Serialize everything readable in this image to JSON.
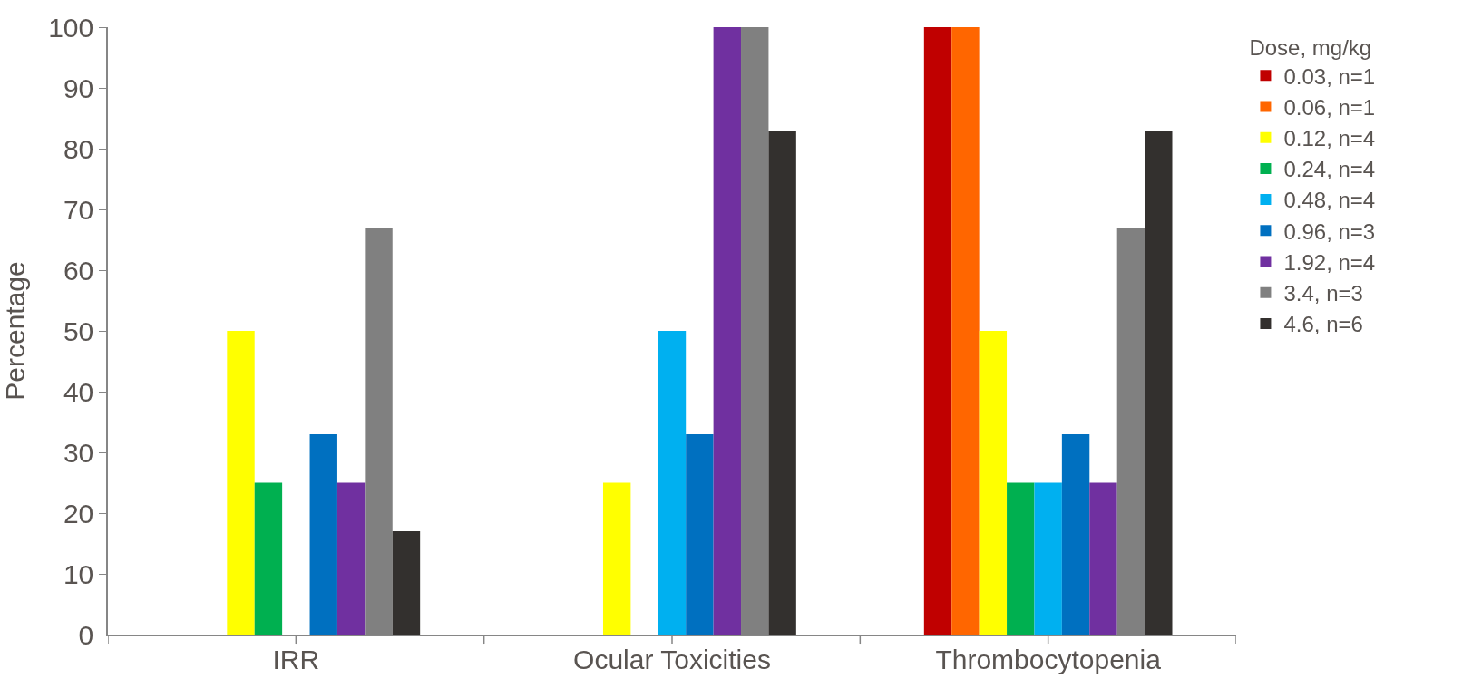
{
  "chart_data": {
    "type": "bar",
    "ylabel": "Percentage",
    "legend_title": "Dose, mg/kg",
    "categories": [
      "IRR",
      "Ocular Toxicities",
      "Thrombocytopenia"
    ],
    "series": [
      {
        "name": "0.03, n=1",
        "color": "#c00000",
        "values": [
          0,
          0,
          100
        ]
      },
      {
        "name": "0.06, n=1",
        "color": "#ff6600",
        "values": [
          0,
          0,
          100
        ]
      },
      {
        "name": "0.12, n=4",
        "color": "#ffff00",
        "values": [
          50,
          25,
          50
        ]
      },
      {
        "name": "0.24, n=4",
        "color": "#00b050",
        "values": [
          25,
          0,
          25
        ]
      },
      {
        "name": "0.48, n=4",
        "color": "#00b0f0",
        "values": [
          0,
          50,
          25
        ]
      },
      {
        "name": "0.96, n=3",
        "color": "#0070c0",
        "values": [
          33,
          33,
          33
        ]
      },
      {
        "name": "1.92, n=4",
        "color": "#7030a0",
        "values": [
          25,
          100,
          25
        ]
      },
      {
        "name": "3.4, n=3",
        "color": "#808080",
        "values": [
          67,
          100,
          67
        ]
      },
      {
        "name": "4.6, n=6",
        "color": "#33302e",
        "values": [
          17,
          83,
          83
        ]
      }
    ],
    "ylim": [
      0,
      100
    ],
    "yticks": [
      0,
      10,
      20,
      30,
      40,
      50,
      60,
      70,
      80,
      90,
      100
    ],
    "grid": false,
    "legend": "right"
  }
}
